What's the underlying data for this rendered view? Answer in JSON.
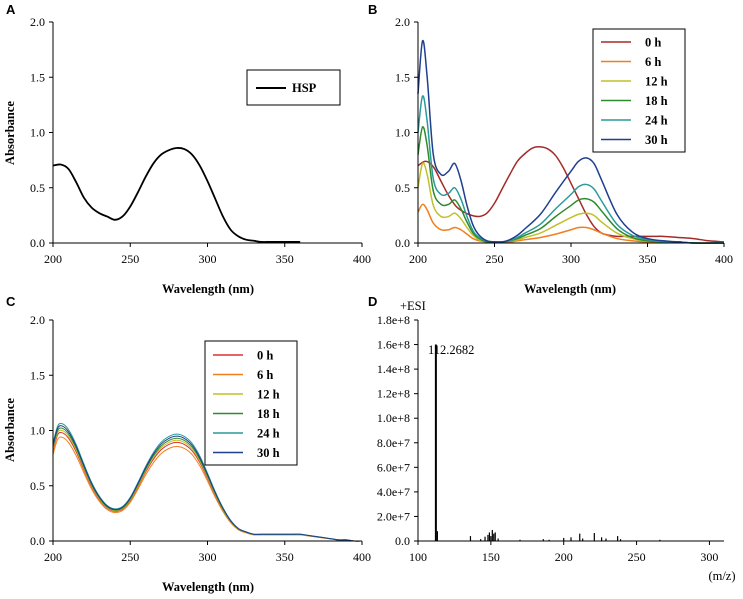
{
  "colors": {
    "t0": "#a52a2a",
    "t6": "#f07f1e",
    "t12": "#c0c02a",
    "t18": "#2e8b2e",
    "t24": "#2a9a9a",
    "t30": "#1f3f8f",
    "hsp": "#000000"
  },
  "chart_data": [
    {
      "panel": "A",
      "type": "line",
      "xlabel": "Wavelength (nm)",
      "ylabel": "Absorbance",
      "xlim": [
        200,
        400
      ],
      "ylim": [
        0,
        2.0
      ],
      "xticks": [
        "200",
        "250",
        "300",
        "350",
        "400"
      ],
      "yticks": [
        "0.0",
        "0.5",
        "1.0",
        "1.5",
        "2.0"
      ],
      "legend": [
        "HSP"
      ],
      "series": [
        {
          "name": "HSP",
          "color": "#000000",
          "x": [
            200,
            205,
            210,
            215,
            220,
            225,
            230,
            235,
            240,
            245,
            250,
            255,
            260,
            265,
            270,
            275,
            280,
            285,
            290,
            295,
            300,
            305,
            310,
            315,
            320,
            325,
            330,
            335,
            340,
            345,
            350,
            355,
            360
          ],
          "y": [
            0.7,
            0.71,
            0.67,
            0.55,
            0.41,
            0.32,
            0.27,
            0.24,
            0.21,
            0.24,
            0.33,
            0.46,
            0.6,
            0.72,
            0.8,
            0.84,
            0.86,
            0.85,
            0.8,
            0.7,
            0.56,
            0.4,
            0.24,
            0.12,
            0.06,
            0.03,
            0.02,
            0.01,
            0.01,
            0.01,
            0.01,
            0.01,
            0.01
          ]
        }
      ]
    },
    {
      "panel": "B",
      "type": "line",
      "xlabel": "Wavelength (nm)",
      "ylabel": "",
      "xlim": [
        200,
        400
      ],
      "ylim": [
        0,
        2.0
      ],
      "xticks": [
        "200",
        "250",
        "300",
        "350",
        "400"
      ],
      "yticks": [
        "0.0",
        "0.5",
        "1.0",
        "1.5",
        "2.0"
      ],
      "legend": [
        "0 h",
        "6 h",
        "12 h",
        "18 h",
        "24 h",
        "30 h"
      ],
      "series": [
        {
          "name": "0 h",
          "color": "#a52a2a",
          "x": [
            200,
            205,
            210,
            215,
            220,
            225,
            230,
            235,
            240,
            245,
            250,
            255,
            260,
            265,
            270,
            275,
            280,
            285,
            290,
            295,
            300,
            305,
            310,
            315,
            320,
            325,
            330,
            335,
            340,
            345,
            350,
            355,
            360,
            370,
            380,
            390,
            400
          ],
          "y": [
            0.7,
            0.74,
            0.69,
            0.56,
            0.43,
            0.33,
            0.28,
            0.25,
            0.24,
            0.27,
            0.36,
            0.49,
            0.62,
            0.74,
            0.81,
            0.86,
            0.87,
            0.85,
            0.79,
            0.68,
            0.54,
            0.4,
            0.26,
            0.15,
            0.09,
            0.07,
            0.06,
            0.06,
            0.06,
            0.06,
            0.06,
            0.06,
            0.06,
            0.05,
            0.04,
            0.02,
            0.01
          ]
        },
        {
          "name": "6 h",
          "color": "#f07f1e",
          "x": [
            200,
            203,
            206,
            210,
            215,
            220,
            224,
            228,
            232,
            236,
            240,
            245,
            250,
            255,
            260,
            265,
            270,
            280,
            290,
            300,
            305,
            310,
            315,
            320,
            330,
            340,
            350,
            360,
            370,
            380,
            400
          ],
          "y": [
            0.28,
            0.35,
            0.3,
            0.18,
            0.12,
            0.12,
            0.14,
            0.12,
            0.08,
            0.04,
            0.02,
            0.01,
            0.01,
            0.01,
            0.01,
            0.02,
            0.03,
            0.05,
            0.08,
            0.12,
            0.14,
            0.14,
            0.12,
            0.09,
            0.04,
            0.02,
            0.01,
            0.01,
            0.01,
            0.0,
            0.0
          ]
        },
        {
          "name": "12 h",
          "color": "#c0c02a",
          "x": [
            200,
            203,
            206,
            210,
            215,
            220,
            224,
            228,
            232,
            236,
            240,
            245,
            250,
            255,
            260,
            265,
            270,
            280,
            290,
            300,
            305,
            310,
            315,
            320,
            330,
            340,
            350,
            360,
            370,
            380,
            400
          ],
          "y": [
            0.5,
            0.72,
            0.62,
            0.34,
            0.24,
            0.24,
            0.27,
            0.22,
            0.14,
            0.07,
            0.03,
            0.01,
            0.01,
            0.01,
            0.02,
            0.03,
            0.05,
            0.09,
            0.16,
            0.23,
            0.26,
            0.27,
            0.25,
            0.19,
            0.09,
            0.04,
            0.02,
            0.01,
            0.01,
            0.0,
            0.0
          ]
        },
        {
          "name": "18 h",
          "color": "#2e8b2e",
          "x": [
            200,
            203,
            206,
            210,
            215,
            220,
            224,
            228,
            232,
            236,
            240,
            245,
            250,
            255,
            260,
            265,
            270,
            280,
            290,
            300,
            305,
            310,
            315,
            320,
            330,
            340,
            350,
            360,
            370,
            380,
            400
          ],
          "y": [
            0.8,
            1.05,
            0.88,
            0.47,
            0.35,
            0.35,
            0.39,
            0.31,
            0.19,
            0.09,
            0.04,
            0.01,
            0.01,
            0.01,
            0.02,
            0.04,
            0.07,
            0.13,
            0.24,
            0.34,
            0.39,
            0.4,
            0.37,
            0.29,
            0.13,
            0.05,
            0.02,
            0.01,
            0.01,
            0.0,
            0.0
          ]
        },
        {
          "name": "24 h",
          "color": "#2a9a9a",
          "x": [
            200,
            203,
            206,
            210,
            215,
            220,
            224,
            228,
            232,
            236,
            240,
            245,
            250,
            255,
            260,
            265,
            270,
            280,
            290,
            300,
            305,
            310,
            315,
            320,
            330,
            340,
            350,
            360,
            370,
            380,
            400
          ],
          "y": [
            1.0,
            1.33,
            1.1,
            0.58,
            0.44,
            0.45,
            0.5,
            0.4,
            0.24,
            0.11,
            0.05,
            0.02,
            0.01,
            0.01,
            0.02,
            0.05,
            0.09,
            0.17,
            0.31,
            0.44,
            0.51,
            0.53,
            0.49,
            0.38,
            0.17,
            0.07,
            0.03,
            0.01,
            0.01,
            0.0,
            0.0
          ]
        },
        {
          "name": "30 h",
          "color": "#1f3f8f",
          "x": [
            200,
            203,
            206,
            210,
            215,
            220,
            224,
            228,
            232,
            236,
            240,
            245,
            250,
            255,
            260,
            265,
            270,
            280,
            290,
            300,
            305,
            310,
            315,
            320,
            330,
            340,
            350,
            360,
            370,
            380,
            400
          ],
          "y": [
            1.35,
            1.83,
            1.5,
            0.8,
            0.62,
            0.65,
            0.72,
            0.57,
            0.34,
            0.16,
            0.07,
            0.02,
            0.01,
            0.01,
            0.03,
            0.07,
            0.13,
            0.26,
            0.46,
            0.65,
            0.74,
            0.77,
            0.72,
            0.57,
            0.26,
            0.1,
            0.04,
            0.02,
            0.01,
            0.0,
            0.0
          ]
        }
      ]
    },
    {
      "panel": "C",
      "type": "line",
      "xlabel": "Wavelength (nm)",
      "ylabel": "Absorbance",
      "xlim": [
        200,
        400
      ],
      "ylim": [
        0,
        2.0
      ],
      "xticks": [
        "200",
        "250",
        "300",
        "350",
        "400"
      ],
      "yticks": [
        "0.0",
        "0.5",
        "1.0",
        "1.5",
        "2.0"
      ],
      "legend": [
        "0 h",
        "6 h",
        "12 h",
        "18 h",
        "24 h",
        "30 h"
      ],
      "base_x": [
        200,
        203,
        206,
        210,
        215,
        220,
        225,
        230,
        235,
        240,
        245,
        250,
        255,
        260,
        265,
        270,
        275,
        280,
        285,
        290,
        295,
        300,
        305,
        310,
        315,
        320,
        325,
        330,
        335,
        340,
        345,
        350,
        355,
        360,
        365,
        370,
        375,
        380,
        385,
        390,
        395,
        400
      ],
      "base_y": [
        0.85,
        1.0,
        1.02,
        0.97,
        0.84,
        0.67,
        0.51,
        0.39,
        0.31,
        0.28,
        0.3,
        0.38,
        0.51,
        0.65,
        0.77,
        0.86,
        0.91,
        0.93,
        0.91,
        0.85,
        0.74,
        0.59,
        0.43,
        0.29,
        0.18,
        0.11,
        0.08,
        0.06,
        0.06,
        0.06,
        0.06,
        0.06,
        0.06,
        0.06,
        0.05,
        0.04,
        0.03,
        0.02,
        0.01,
        0.01,
        0.0,
        0.0
      ],
      "series": [
        {
          "name": "0 h",
          "color": "#e03030",
          "scale": 0.96
        },
        {
          "name": "6 h",
          "color": "#f07f1e",
          "scale": 0.92
        },
        {
          "name": "12 h",
          "color": "#c0c02a",
          "scale": 0.98
        },
        {
          "name": "18 h",
          "color": "#2e8b2e",
          "scale": 1.0
        },
        {
          "name": "24 h",
          "color": "#2a9a9a",
          "scale": 1.04
        },
        {
          "name": "30 h",
          "color": "#1f3f8f",
          "scale": 1.02
        }
      ]
    },
    {
      "panel": "D",
      "type": "bar",
      "title": "+ESI",
      "xlabel": "(m/z)",
      "xlim": [
        100,
        310
      ],
      "ylim": [
        0,
        180000000.0
      ],
      "xticks": [
        "100",
        "150",
        "200",
        "250",
        "300"
      ],
      "yticks": [
        "0.0",
        "2.0e+7",
        "4.0e+7",
        "6.0e+7",
        "8.0e+7",
        "1.0e+8",
        "1.2e+8",
        "1.4e+8",
        "1.6e+8",
        "1.8e+8"
      ],
      "annotation": {
        "text": "112.2682",
        "x": 112.2682,
        "y": 160000000.0
      },
      "peaks_x": [
        112.27,
        113.3,
        136,
        143,
        146,
        148,
        149,
        150,
        151,
        152,
        153,
        155,
        170,
        186,
        190,
        200,
        205,
        211,
        213,
        221,
        226,
        229,
        237,
        239,
        266
      ],
      "peaks_y": [
        160000000.0,
        8000000.0,
        4000000.0,
        1500000.0,
        3500000.0,
        5000000.0,
        7000000.0,
        4000000.0,
        9000000.0,
        6000000.0,
        7000000.0,
        2000000.0,
        1000000.0,
        1500000.0,
        1000000.0,
        2500000.0,
        3000000.0,
        6000000.0,
        2000000.0,
        6500000.0,
        3000000.0,
        2000000.0,
        4000000.0,
        1500000.0,
        1000000.0
      ]
    }
  ]
}
